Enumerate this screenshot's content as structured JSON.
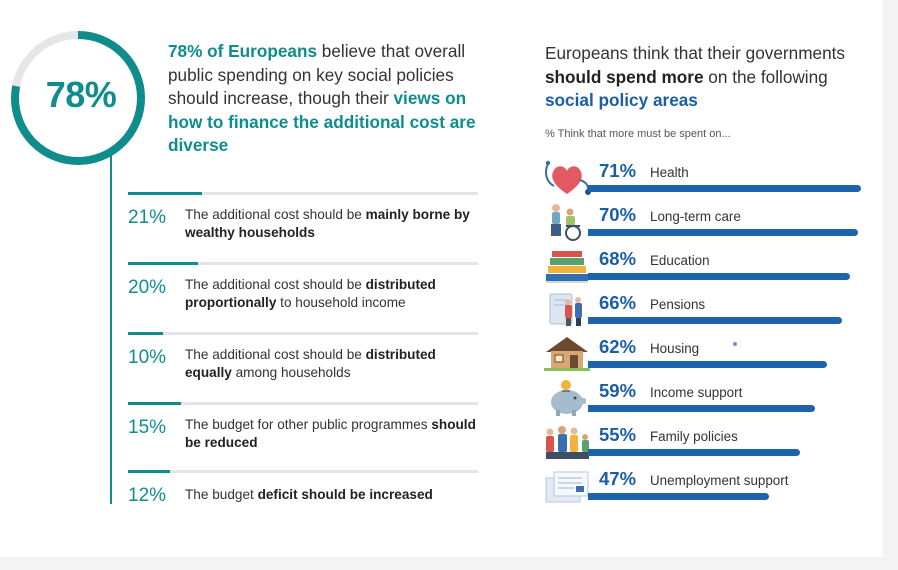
{
  "colors": {
    "teal": "#0f8c8c",
    "blue": "#1e63ae",
    "text": "#333333",
    "track": "#e4e4e4"
  },
  "headline": {
    "big_percent": "78%",
    "part1_bold": "78% of Europeans",
    "part2": " believe that overall public spending on key social policies should increase, though their ",
    "part3_bold": "views on how to finance the additional cost are diverse"
  },
  "ring_fraction": 0.78,
  "financing": [
    {
      "pct": "21%",
      "value": 21,
      "pre": "The additional cost should be ",
      "bold": "mainly borne by wealthy households",
      "post": ""
    },
    {
      "pct": "20%",
      "value": 20,
      "pre": "The additional cost should be ",
      "bold": "distributed proportionally",
      "post": " to household income"
    },
    {
      "pct": "10%",
      "value": 10,
      "pre": "The additional cost should be ",
      "bold": "distributed equally",
      "post": " among households"
    },
    {
      "pct": "15%",
      "value": 15,
      "pre": "The budget for other public programmes ",
      "bold": "should be reduced",
      "post": ""
    },
    {
      "pct": "12%",
      "value": 12,
      "pre": "The budget ",
      "bold": "deficit should be increased",
      "post": ""
    }
  ],
  "right_title": {
    "pre": "Europeans think that their governments ",
    "bold": "should spend more",
    "mid": " on the following ",
    "blue": "social policy areas"
  },
  "right_subtitle": "% Think that more must be spent on...",
  "chart_data": [
    {
      "type": "bar",
      "title": "78% of Europeans believe that overall public spending on key social policies should increase, though their views on how to finance the additional cost are diverse",
      "categories": [
        "The additional cost should be mainly borne by wealthy households",
        "The additional cost should be distributed proportionally to household income",
        "The additional cost should be distributed equally among households",
        "The budget for other public programmes should be reduced",
        "The budget deficit should be increased"
      ],
      "values": [
        21,
        20,
        10,
        15,
        12
      ],
      "ylim": [
        0,
        100
      ],
      "xlabel": "",
      "ylabel": ""
    },
    {
      "type": "bar",
      "title": "Europeans think that their governments should spend more on the following social policy areas",
      "subtitle": "% Think that more must be spent on...",
      "categories": [
        "Health",
        "Long-term care",
        "Education",
        "Pensions",
        "Housing",
        "Income support",
        "Family policies",
        "Unemployment support"
      ],
      "values": [
        71,
        70,
        68,
        66,
        62,
        59,
        55,
        47
      ],
      "ylim": [
        0,
        100
      ],
      "xlabel": "",
      "ylabel": ""
    }
  ],
  "areas": [
    {
      "pct": "71%",
      "label": "Health",
      "icon": "heart-stethoscope-icon"
    },
    {
      "pct": "70%",
      "label": "Long-term care",
      "icon": "wheelchair-icon"
    },
    {
      "pct": "68%",
      "label": "Education",
      "icon": "books-icon"
    },
    {
      "pct": "66%",
      "label": "Pensions",
      "icon": "elderly-couple-icon"
    },
    {
      "pct": "62%",
      "label": "Housing",
      "icon": "house-icon"
    },
    {
      "pct": "59%",
      "label": "Income support",
      "icon": "piggy-bank-icon"
    },
    {
      "pct": "55%",
      "label": "Family policies",
      "icon": "family-icon"
    },
    {
      "pct": "47%",
      "label": "Unemployment support",
      "icon": "documents-icon"
    }
  ]
}
